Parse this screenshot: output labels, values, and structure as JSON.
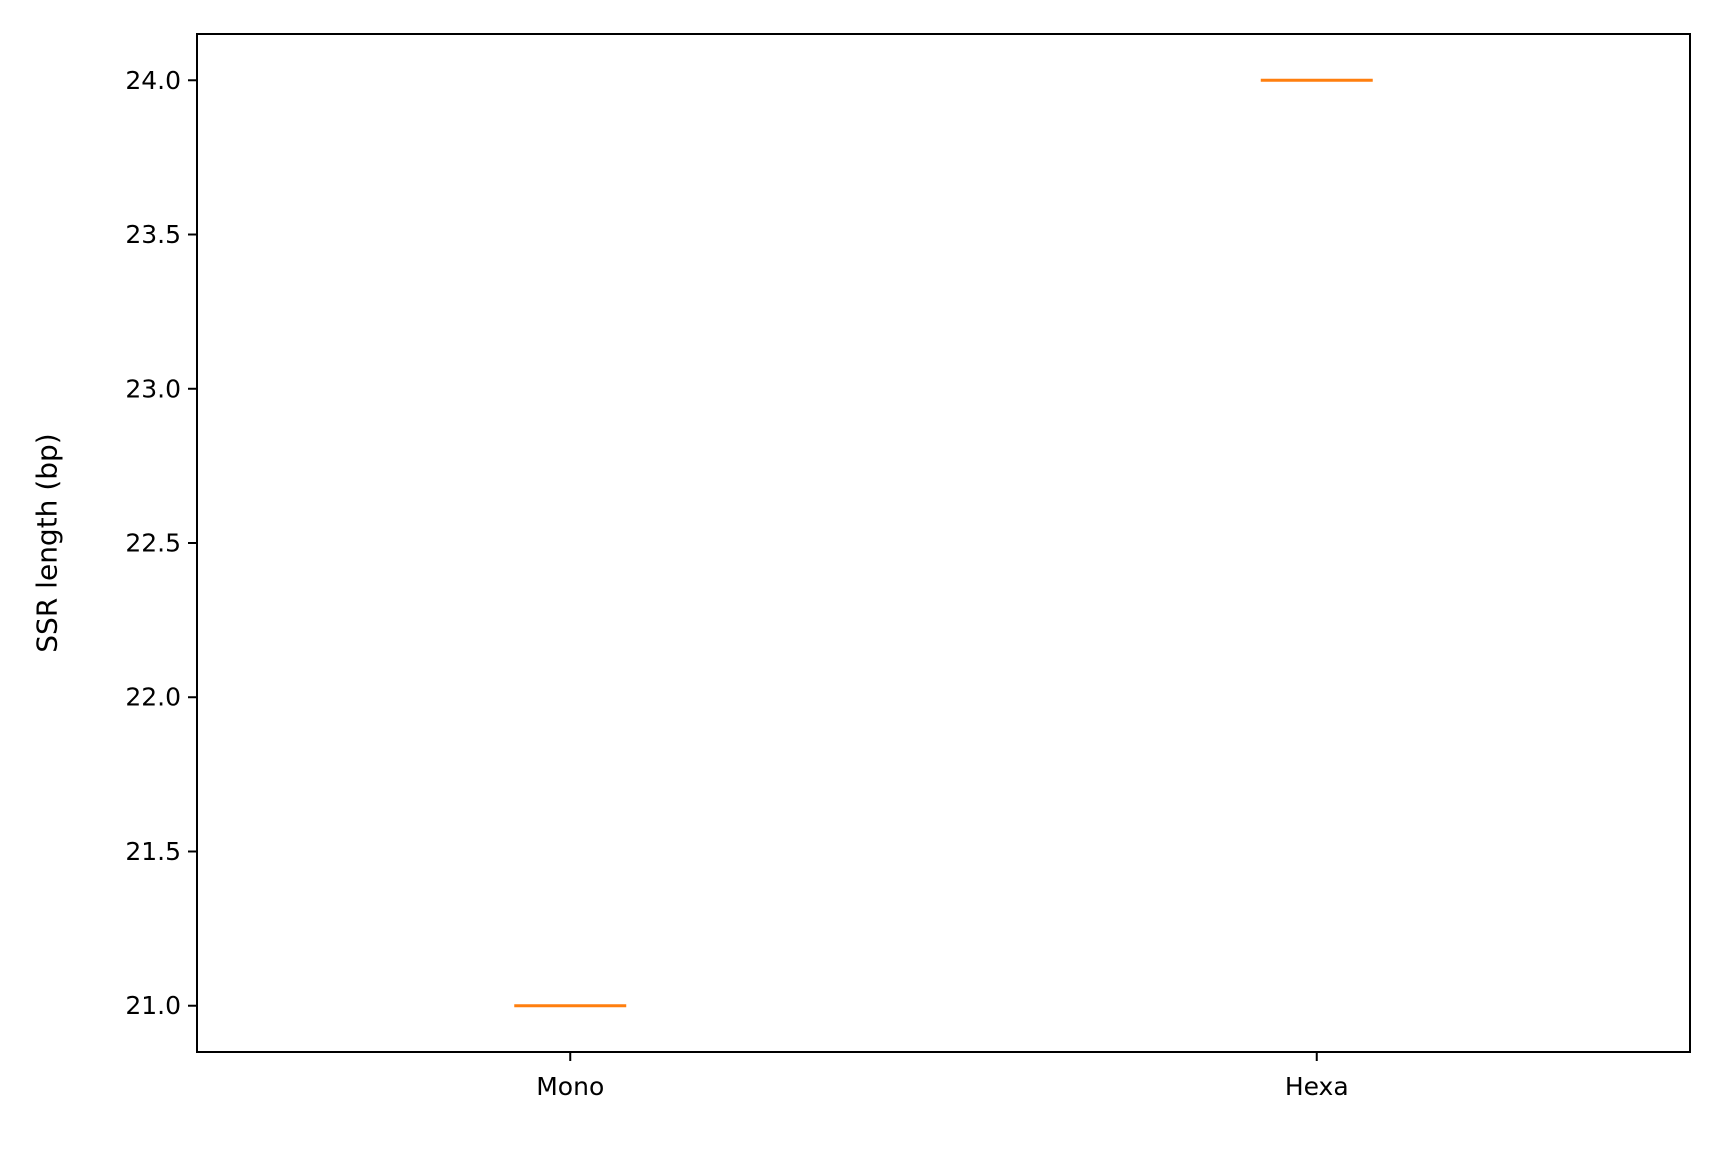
{
  "chart_data": {
    "type": "box",
    "categories": [
      "Mono",
      "Hexa"
    ],
    "series": [
      {
        "values": [
          21.0,
          24.0
        ]
      }
    ],
    "ylabel": "SSR length (bp)",
    "xlabel": "",
    "title": "",
    "ylim": [
      20.85,
      24.15
    ],
    "yticks": [
      21.0,
      21.5,
      22.0,
      22.5,
      23.0,
      23.5,
      24.0
    ],
    "ytick_labels": [
      "21.0",
      "21.5",
      "22.0",
      "22.5",
      "23.0",
      "23.5",
      "24.0"
    ],
    "grid": false,
    "median_color": "#ff7f0e",
    "axis_color": "#000000"
  }
}
